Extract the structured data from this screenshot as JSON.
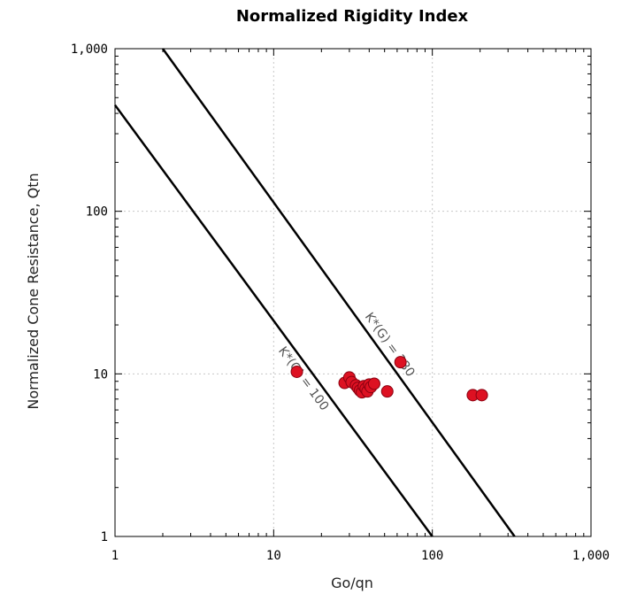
{
  "chart_data": {
    "type": "scatter",
    "title": "Normalized Rigidity Index",
    "xlabel": "Go/qn",
    "ylabel": "Normalized Cone Resistance, Qtn",
    "x_scale": "log",
    "y_scale": "log",
    "xlim": [
      1,
      1000
    ],
    "ylim": [
      1,
      1000
    ],
    "x_ticks": [
      1,
      10,
      100,
      1000
    ],
    "y_ticks": [
      1,
      10,
      100,
      1000
    ],
    "x_tick_labels": [
      "1",
      "10",
      "100",
      "1,000"
    ],
    "y_tick_labels": [
      "1",
      "10",
      "100",
      "1,000"
    ],
    "grid": true,
    "point_color": "#dd1122",
    "reference_lines": [
      {
        "label": "K*(G) = 100",
        "x": [
          1,
          100
        ],
        "y": [
          450,
          1
        ]
      },
      {
        "label": "K*(G) = 330",
        "x": [
          2,
          330
        ],
        "y": [
          1000,
          1
        ]
      }
    ],
    "series": [
      {
        "x": [
          14,
          28,
          30,
          31,
          33,
          34,
          35,
          36,
          37,
          38,
          39,
          40,
          41,
          43,
          52,
          63,
          180,
          205
        ],
        "y": [
          10.3,
          8.8,
          9.5,
          8.9,
          8.5,
          8.2,
          7.9,
          7.7,
          8.4,
          8.1,
          7.8,
          8.6,
          8.3,
          8.7,
          7.8,
          11.8,
          7.4,
          7.4
        ]
      }
    ]
  }
}
